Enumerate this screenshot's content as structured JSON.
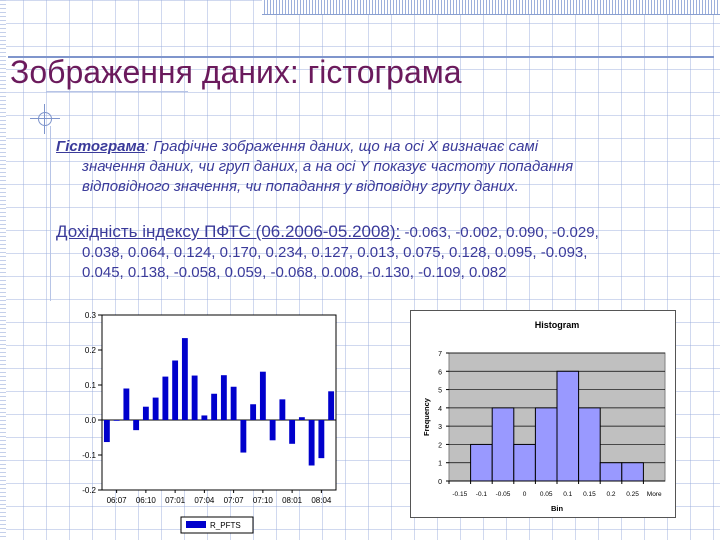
{
  "slide": {
    "title": "Зображення даних: гістограма",
    "para1": {
      "head": "Гістограма",
      "colon": ":",
      "line1_rest": " Графічне зображення даних, що на осі X визначає самі",
      "line2": "значення даних, чи груп даних, а на осі Y показує частоту попадання",
      "line3": "відповідного значення, чи попадання у відповідну групу даних."
    },
    "para2": {
      "head": "Дохідність індексу ПФТС (06.2006-05.2008):",
      "line1_rest": " -0.063, -0.002, 0.090, -0.029,",
      "line2": "0.038, 0.064, 0.124, 0.170, 0.234, 0.127, 0.013, 0.075, 0.128, 0.095, -0.093,",
      "line3": "0.045, 0.138, -0.058, 0.059, -0.068, 0.008, -0.130, -0.109, 0.082"
    },
    "colors": {
      "title": "#6b1a5c",
      "text": "#3a3a9a",
      "bar": "#0000cc",
      "hist_bar": "#9999ff",
      "plot_bg": "#c0c0c0"
    }
  },
  "chart_data": [
    {
      "type": "bar",
      "title": "",
      "legend": "R_PFTS",
      "legend_position": "bottom",
      "ylim": [
        -0.2,
        0.3
      ],
      "y_ticks": [
        "-0.2",
        "-0.1",
        "0.0",
        "0.1",
        "0.2",
        "0.3"
      ],
      "x_tick_labels": [
        "06:07",
        "06:10",
        "07:01",
        "07:04",
        "07:07",
        "07:10",
        "08:01",
        "08:04"
      ],
      "values": [
        -0.063,
        -0.002,
        0.09,
        -0.029,
        0.038,
        0.064,
        0.124,
        0.17,
        0.234,
        0.127,
        0.013,
        0.075,
        0.128,
        0.095,
        -0.093,
        0.045,
        0.138,
        -0.058,
        0.059,
        -0.068,
        0.008,
        -0.13,
        -0.109,
        0.082
      ]
    },
    {
      "type": "bar",
      "title": "Histogram",
      "xlabel": "Bin",
      "ylabel": "Frequency",
      "ylim": [
        0,
        7
      ],
      "y_ticks": [
        "0",
        "1",
        "2",
        "3",
        "4",
        "5",
        "6",
        "7"
      ],
      "x_tick_labels": [
        "-0.15",
        "-0.1",
        "-0.05",
        "0",
        "0.05",
        "0.1",
        "0.15",
        "0.2",
        "0.25",
        "More"
      ],
      "values": [
        0,
        2,
        4,
        2,
        4,
        6,
        4,
        1,
        1,
        0
      ]
    }
  ]
}
